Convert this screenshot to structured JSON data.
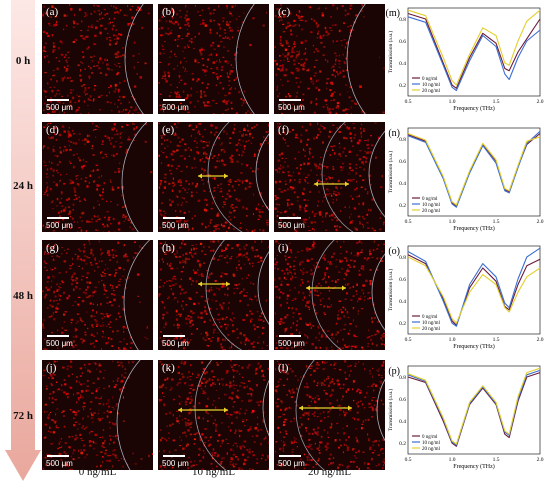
{
  "time_labels": [
    "0 h",
    "24 h",
    "48 h",
    "72 h"
  ],
  "col_labels": [
    "0 ng/mL",
    "10 ng/mL",
    "20 ng/mL"
  ],
  "panels": [
    {
      "label": "(a)",
      "scale": "500 μm"
    },
    {
      "label": "(b)",
      "scale": "500 μm"
    },
    {
      "label": "(c)",
      "scale": "500 μm"
    },
    {
      "label": "(d)",
      "scale": "500 μm"
    },
    {
      "label": "(e)",
      "scale": "500 μm"
    },
    {
      "label": "(f)",
      "scale": "500 μm"
    },
    {
      "label": "(g)",
      "scale": "500 μm"
    },
    {
      "label": "(h)",
      "scale": "500 μm"
    },
    {
      "label": "(i)",
      "scale": "500 μm"
    },
    {
      "label": "(j)",
      "scale": "500 μm"
    },
    {
      "label": "(k)",
      "scale": "500 μm"
    },
    {
      "label": "(l)",
      "scale": "500 μm"
    }
  ],
  "colors": {
    "s0": "#6b1a3a",
    "s10": "#3c6fd2",
    "s20": "#e2cf2e",
    "arrow": "#e8d22a",
    "ring": "#c8d8e8"
  },
  "chart_data": [
    {
      "type": "line",
      "label": "(m)",
      "xlabel": "Frequency (THz)",
      "ylabel": "Transmission (a.u.)",
      "xlim": [
        0.5,
        2.0
      ],
      "ylim": [
        0.1,
        0.9
      ],
      "xticks": [
        "0.5",
        "1.0",
        "1.5",
        "2.0"
      ],
      "yticks": [
        "0.2",
        "0.4",
        "0.6",
        "0.8"
      ],
      "x": [
        0.5,
        0.7,
        0.9,
        1.0,
        1.05,
        1.2,
        1.35,
        1.5,
        1.6,
        1.65,
        1.75,
        1.85,
        2.0
      ],
      "series": [
        {
          "name": "0 ng/ml",
          "values": [
            0.85,
            0.8,
            0.4,
            0.2,
            0.17,
            0.45,
            0.67,
            0.58,
            0.35,
            0.33,
            0.5,
            0.62,
            0.8
          ]
        },
        {
          "name": "10 ng/ml",
          "values": [
            0.82,
            0.77,
            0.38,
            0.18,
            0.15,
            0.42,
            0.65,
            0.55,
            0.3,
            0.25,
            0.45,
            0.6,
            0.7
          ]
        },
        {
          "name": "20 ng/ml",
          "values": [
            0.88,
            0.83,
            0.45,
            0.24,
            0.2,
            0.48,
            0.72,
            0.65,
            0.4,
            0.38,
            0.6,
            0.78,
            0.88
          ]
        }
      ]
    },
    {
      "type": "line",
      "label": "(n)",
      "xlabel": "Frequency (THz)",
      "ylabel": "Transmission (a.u.)",
      "xlim": [
        0.5,
        2.0
      ],
      "ylim": [
        0.1,
        0.9
      ],
      "xticks": [
        "0.5",
        "1.0",
        "1.5",
        "2.0"
      ],
      "yticks": [
        "0.2",
        "0.4",
        "0.6",
        "0.8"
      ],
      "x": [
        0.5,
        0.7,
        0.9,
        1.0,
        1.05,
        1.2,
        1.35,
        1.5,
        1.6,
        1.65,
        1.75,
        1.85,
        2.0
      ],
      "series": [
        {
          "name": "0 ng/ml",
          "values": [
            0.84,
            0.78,
            0.45,
            0.22,
            0.19,
            0.5,
            0.75,
            0.6,
            0.34,
            0.32,
            0.55,
            0.75,
            0.85
          ]
        },
        {
          "name": "10 ng/ml",
          "values": [
            0.83,
            0.77,
            0.44,
            0.21,
            0.18,
            0.49,
            0.74,
            0.58,
            0.33,
            0.31,
            0.54,
            0.76,
            0.87
          ]
        },
        {
          "name": "20 ng/ml",
          "values": [
            0.85,
            0.79,
            0.46,
            0.23,
            0.2,
            0.51,
            0.76,
            0.61,
            0.35,
            0.33,
            0.56,
            0.78,
            0.82
          ]
        }
      ]
    },
    {
      "type": "line",
      "label": "(o)",
      "xlabel": "Frequency (THz)",
      "ylabel": "Transmission (a.u.)",
      "xlim": [
        0.5,
        2.0
      ],
      "ylim": [
        0.1,
        0.9
      ],
      "xticks": [
        "0.5",
        "1.0",
        "1.5",
        "2.0"
      ],
      "yticks": [
        "0.2",
        "0.4",
        "0.6",
        "0.8"
      ],
      "x": [
        0.5,
        0.7,
        0.9,
        1.0,
        1.05,
        1.2,
        1.35,
        1.5,
        1.6,
        1.65,
        1.75,
        1.85,
        2.0
      ],
      "series": [
        {
          "name": "0 ng/ml",
          "values": [
            0.82,
            0.74,
            0.42,
            0.22,
            0.18,
            0.52,
            0.7,
            0.58,
            0.35,
            0.32,
            0.55,
            0.72,
            0.78
          ]
        },
        {
          "name": "10 ng/ml",
          "values": [
            0.85,
            0.76,
            0.4,
            0.2,
            0.17,
            0.55,
            0.74,
            0.62,
            0.38,
            0.34,
            0.6,
            0.8,
            0.88
          ]
        },
        {
          "name": "20 ng/ml",
          "values": [
            0.8,
            0.72,
            0.44,
            0.24,
            0.2,
            0.48,
            0.64,
            0.55,
            0.34,
            0.3,
            0.48,
            0.62,
            0.7
          ]
        }
      ]
    },
    {
      "type": "line",
      "label": "(p)",
      "xlabel": "Frequency (THz)",
      "ylabel": "Transmission (a.u.)",
      "xlim": [
        0.5,
        2.0
      ],
      "ylim": [
        0.1,
        0.9
      ],
      "xticks": [
        "0.5",
        "1.0",
        "1.5",
        "2.0"
      ],
      "yticks": [
        "0.2",
        "0.4",
        "0.6",
        "0.8"
      ],
      "x": [
        0.5,
        0.7,
        0.9,
        1.0,
        1.05,
        1.2,
        1.35,
        1.5,
        1.6,
        1.65,
        1.75,
        1.85,
        2.0
      ],
      "series": [
        {
          "name": "0 ng/ml",
          "values": [
            0.8,
            0.75,
            0.4,
            0.2,
            0.17,
            0.55,
            0.7,
            0.55,
            0.28,
            0.25,
            0.58,
            0.8,
            0.84
          ]
        },
        {
          "name": "10 ng/ml",
          "values": [
            0.82,
            0.76,
            0.42,
            0.21,
            0.18,
            0.56,
            0.71,
            0.56,
            0.3,
            0.27,
            0.6,
            0.82,
            0.86
          ]
        },
        {
          "name": "20 ng/ml",
          "values": [
            0.83,
            0.77,
            0.43,
            0.22,
            0.19,
            0.57,
            0.72,
            0.57,
            0.31,
            0.28,
            0.62,
            0.84,
            0.88
          ]
        }
      ]
    }
  ]
}
